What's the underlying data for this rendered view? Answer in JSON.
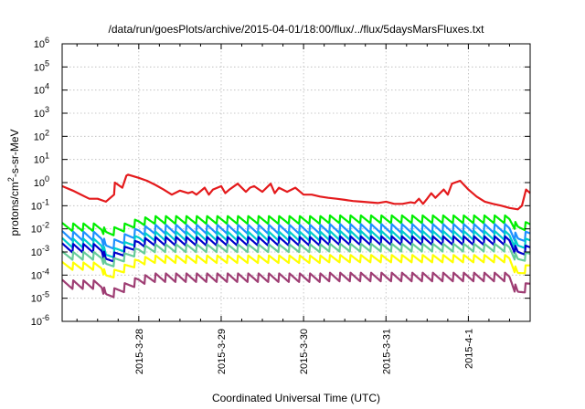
{
  "chart_data": {
    "type": "line",
    "title": "/data/run/goesPlots/archive/2015-04-01/18:00/flux/../flux/5daysMarsFluxes.txt",
    "xlabel": "Coordinated Universal Time (UTC)",
    "ylabel_parts": {
      "base": "protons/cm",
      "exp": "2",
      "rest": "-s-sr-MeV"
    },
    "y_scale": "log",
    "ylim": [
      1e-06,
      1000000.0
    ],
    "y_ticks": [
      {
        "base": "10",
        "exp": "-6",
        "value": 1e-06
      },
      {
        "base": "10",
        "exp": "-5",
        "value": 1e-05
      },
      {
        "base": "10",
        "exp": "-4",
        "value": 0.0001
      },
      {
        "base": "10",
        "exp": "-3",
        "value": 0.001
      },
      {
        "base": "10",
        "exp": "-2",
        "value": 0.01
      },
      {
        "base": "10",
        "exp": "-1",
        "value": 0.1
      },
      {
        "base": "10",
        "exp": "0",
        "value": 1
      },
      {
        "base": "10",
        "exp": "1",
        "value": 10
      },
      {
        "base": "10",
        "exp": "2",
        "value": 100
      },
      {
        "base": "10",
        "exp": "3",
        "value": 1000
      },
      {
        "base": "10",
        "exp": "4",
        "value": 10000
      },
      {
        "base": "10",
        "exp": "5",
        "value": 100000
      },
      {
        "base": "10",
        "exp": "6",
        "value": 1000000
      }
    ],
    "x_unit": "days",
    "xlim": [
      -0.93,
      4.75
    ],
    "x_ticks": [
      {
        "label": "2015-3-28",
        "value": 0
      },
      {
        "label": "2015-3-29",
        "value": 1
      },
      {
        "label": "2015-3-30",
        "value": 2
      },
      {
        "label": "2015-3-31",
        "value": 3
      },
      {
        "label": "2015-4-1",
        "value": 4
      }
    ],
    "grid": true,
    "series": [
      {
        "color": "#e41a1c",
        "x": [
          -0.93,
          -0.8,
          -0.7,
          -0.6,
          -0.5,
          -0.4,
          -0.3,
          -0.29,
          -0.2,
          -0.15,
          -0.13,
          0,
          0.1,
          0.2,
          0.3,
          0.4,
          0.5,
          0.6,
          0.65,
          0.7,
          0.8,
          0.85,
          0.9,
          1.0,
          1.05,
          1.1,
          1.2,
          1.3,
          1.35,
          1.4,
          1.5,
          1.6,
          1.65,
          1.7,
          1.8,
          1.9,
          2.0,
          2.1,
          2.2,
          2.3,
          2.4,
          2.5,
          2.6,
          2.7,
          2.8,
          2.9,
          3.0,
          3.1,
          3.2,
          3.3,
          3.35,
          3.4,
          3.45,
          3.5,
          3.55,
          3.6,
          3.7,
          3.75,
          3.8,
          3.9,
          4.0,
          4.1,
          4.2,
          4.3,
          4.4,
          4.5,
          4.6,
          4.65,
          4.7,
          4.75
        ],
        "values": [
          0.7,
          0.45,
          0.3,
          0.2,
          0.2,
          0.15,
          0.3,
          1.0,
          0.6,
          2.0,
          2.2,
          1.6,
          1.2,
          0.8,
          0.5,
          0.3,
          0.45,
          0.35,
          0.4,
          0.3,
          0.6,
          0.3,
          0.5,
          0.7,
          0.35,
          0.5,
          0.9,
          0.4,
          0.6,
          0.7,
          0.4,
          0.9,
          0.35,
          0.6,
          0.4,
          0.6,
          0.3,
          0.3,
          0.25,
          0.22,
          0.2,
          0.18,
          0.16,
          0.15,
          0.14,
          0.13,
          0.15,
          0.12,
          0.12,
          0.14,
          0.13,
          0.2,
          0.12,
          0.2,
          0.35,
          0.22,
          0.5,
          0.3,
          0.9,
          1.2,
          0.5,
          0.25,
          0.15,
          0.12,
          0.1,
          0.08,
          0.07,
          0.1,
          0.5,
          0.35
        ]
      },
      {
        "color": "#00ee00",
        "x": [
          -0.93,
          -0.45,
          -0.4,
          0,
          0.2,
          4.5,
          4.6,
          4.75
        ],
        "values": [
          0.012,
          0.012,
          0.006,
          0.02,
          0.025,
          0.025,
          0.01,
          0.015
        ],
        "sawtooth": {
          "amp": 2.3,
          "period": 0.125
        }
      },
      {
        "color": "#1e90ff",
        "x": [
          -0.93,
          -0.45,
          -0.4,
          0,
          0.2,
          4.5,
          4.6,
          4.75
        ],
        "values": [
          0.005,
          0.005,
          0.0015,
          0.008,
          0.01,
          0.01,
          0.003,
          0.006
        ],
        "sawtooth": {
          "amp": 2.6,
          "period": 0.125
        }
      },
      {
        "color": "#00cccc",
        "x": [
          -0.93,
          -0.45,
          -0.4,
          0,
          0.2,
          4.5,
          4.6,
          4.75
        ],
        "values": [
          0.0025,
          0.0025,
          0.0006,
          0.004,
          0.005,
          0.005,
          0.0015,
          0.003
        ],
        "sawtooth": {
          "amp": 2.6,
          "period": 0.125
        }
      },
      {
        "color": "#0000cc",
        "x": [
          -0.93,
          -0.45,
          -0.4,
          0,
          0.2,
          4.5,
          4.6,
          4.75
        ],
        "values": [
          0.0015,
          0.0015,
          0.0004,
          0.0025,
          0.003,
          0.003,
          0.0008,
          0.0015
        ],
        "sawtooth": {
          "amp": 2.5,
          "period": 0.125
        }
      },
      {
        "color": "#66cc99",
        "x": [
          -0.93,
          -0.45,
          -0.4,
          0,
          0.2,
          4.5,
          4.6,
          4.75
        ],
        "values": [
          0.0007,
          0.0007,
          0.00025,
          0.0012,
          0.0015,
          0.0015,
          0.0004,
          0.0008
        ],
        "sawtooth": {
          "amp": 2.3,
          "period": 0.125
        }
      },
      {
        "color": "#ffff00",
        "x": [
          -0.93,
          -0.45,
          -0.4,
          0,
          0.2,
          4.5,
          4.6,
          4.75
        ],
        "values": [
          0.00025,
          0.00025,
          8e-05,
          0.0004,
          0.0005,
          0.0005,
          0.0001,
          0.00025
        ],
        "sawtooth": {
          "amp": 2.2,
          "period": 0.125
        }
      },
      {
        "color": "#9e3d73",
        "x": [
          -0.93,
          -0.45,
          -0.4,
          0,
          0.2,
          4.5,
          4.6,
          4.75
        ],
        "values": [
          4e-05,
          4e-05,
          1.2e-05,
          6e-05,
          8e-05,
          8e-05,
          1.5e-05,
          4e-05
        ],
        "sawtooth": {
          "amp": 2.5,
          "period": 0.125
        }
      }
    ]
  }
}
